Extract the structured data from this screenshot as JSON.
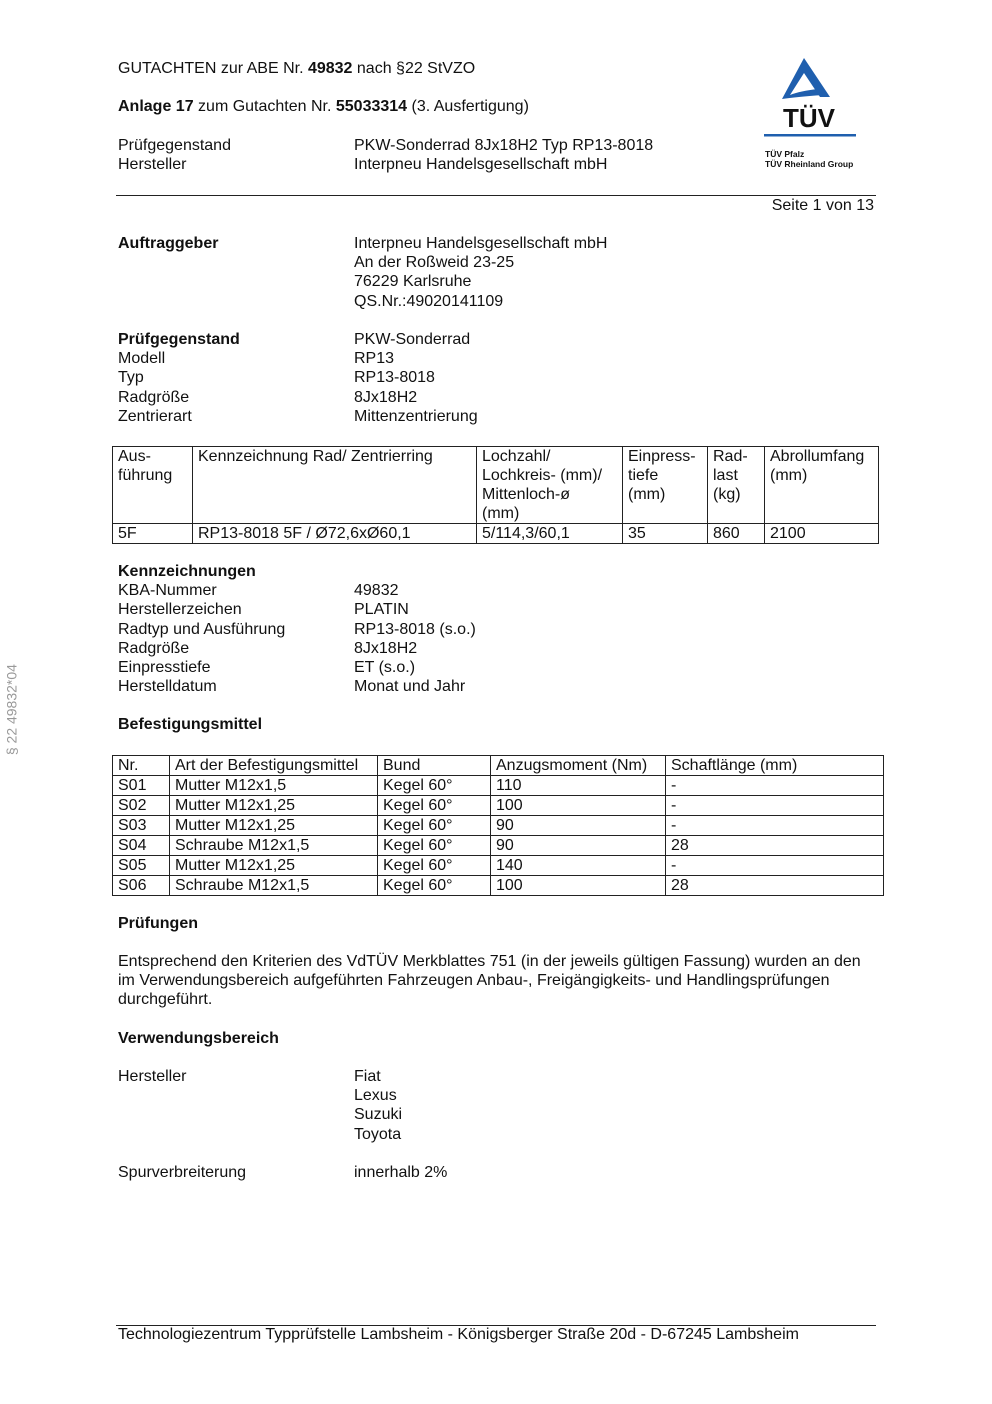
{
  "header": {
    "line1_pre": "GUTACHTEN zur ABE Nr. ",
    "line1_num": "49832",
    "line1_post": " nach §22 StVZO",
    "line2_pre": "Anlage 17",
    "line2_mid": " zum Gutachten Nr. ",
    "line2_num": "55033314",
    "line2_post": " (3. Ausfertigung)",
    "info": [
      {
        "k": "Prüfgegenstand",
        "v": "PKW-Sonderrad 8Jx18H2 Typ RP13-8018"
      },
      {
        "k": "Hersteller",
        "v": "Interpneu Handelsgesellschaft mbH"
      }
    ],
    "page": "Seite 1 von 13"
  },
  "logo": {
    "brand": "TÜV",
    "line1": "TÜV Pfalz",
    "line2": "TÜV Rheinland Group",
    "color": "#1f5fae"
  },
  "side_text": "§ 22  49832*04",
  "auftraggeber": [
    {
      "k": "Auftraggeber",
      "v": "Interpneu Handelsgesellschaft mbH",
      "bold": true
    },
    {
      "k": "",
      "v": "An der Roßweid 23-25"
    },
    {
      "k": "",
      "v": "76229 Karlsruhe"
    },
    {
      "k": "",
      "v": "QS.Nr.:49020141109"
    }
  ],
  "pruefgegenstand": [
    {
      "k": "Prüfgegenstand",
      "v": "PKW-Sonderrad",
      "bold": true
    },
    {
      "k": "Modell",
      "v": "RP13"
    },
    {
      "k": "Typ",
      "v": "RP13-8018"
    },
    {
      "k": "Radgröße",
      "v": "8Jx18H2"
    },
    {
      "k": "Zentrierart",
      "v": "Mittenzentrierung"
    }
  ],
  "table1": {
    "header": [
      "Aus-\nführung",
      "Kennzeichnung Rad/ Zentrierring",
      "Lochzahl/\nLochkreis- (mm)/\nMittenloch-ø\n(mm)",
      "Einpress-\ntiefe\n(mm)",
      "Rad-\nlast\n(kg)",
      "Abrollumfang\n(mm)"
    ],
    "rows": [
      [
        "5F",
        "RP13-8018 5F / Ø72,6xØ60,1",
        "5/114,3/60,1",
        "35",
        "860",
        "2100"
      ]
    ]
  },
  "kennzeichnungen": [
    {
      "k": "Kennzeichnungen",
      "v": "",
      "bold": true
    },
    {
      "k": "KBA-Nummer",
      "v": "49832"
    },
    {
      "k": "Herstellerzeichen",
      "v": "PLATIN"
    },
    {
      "k": "Radtyp und Ausführung",
      "v": "RP13-8018 (s.o.)"
    },
    {
      "k": "Radgröße",
      "v": "8Jx18H2"
    },
    {
      "k": "Einpresstiefe",
      "v": "ET (s.o.)"
    },
    {
      "k": "Herstelldatum",
      "v": "Monat und Jahr"
    }
  ],
  "befestigung_title": "Befestigungsmittel",
  "table2": {
    "header": [
      "Nr.",
      "Art der Befestigungsmittel",
      "Bund",
      "Anzugsmoment (Nm)",
      "Schaftlänge (mm)"
    ],
    "rows": [
      [
        "S01",
        "Mutter M12x1,5",
        "Kegel 60°",
        "110",
        "-"
      ],
      [
        "S02",
        "Mutter M12x1,25",
        "Kegel 60°",
        "100",
        "-"
      ],
      [
        "S03",
        "Mutter M12x1,25",
        "Kegel 60°",
        "90",
        "-"
      ],
      [
        "S04",
        "Schraube M12x1,5",
        "Kegel 60°",
        "90",
        "28"
      ],
      [
        "S05",
        "Mutter M12x1,25",
        "Kegel 60°",
        "140",
        "-"
      ],
      [
        "S06",
        "Schraube M12x1,5",
        "Kegel 60°",
        "100",
        "28"
      ]
    ]
  },
  "pruefungen_title": "Prüfungen",
  "pruefungen_text": "Entsprechend den Kriterien des VdTÜV Merkblattes 751 (in der jeweils gültigen Fassung) wurden an den im Verwendungsbereich aufgeführten Fahrzeugen Anbau-, Freigängigkeits- und Handlingsprüfungen durchgeführt.",
  "verwendung_title": "Verwendungsbereich",
  "verwendung": [
    {
      "k": "Hersteller",
      "v": "Fiat"
    },
    {
      "k": "",
      "v": "Lexus"
    },
    {
      "k": "",
      "v": "Suzuki"
    },
    {
      "k": "",
      "v": "Toyota"
    }
  ],
  "spur": [
    {
      "k": "Spurverbreiterung",
      "v": "innerhalb 2%"
    }
  ],
  "footer": "Technologiezentrum Typprüfstelle Lambsheim - Königsberger Straße 20d - D-67245 Lambsheim"
}
